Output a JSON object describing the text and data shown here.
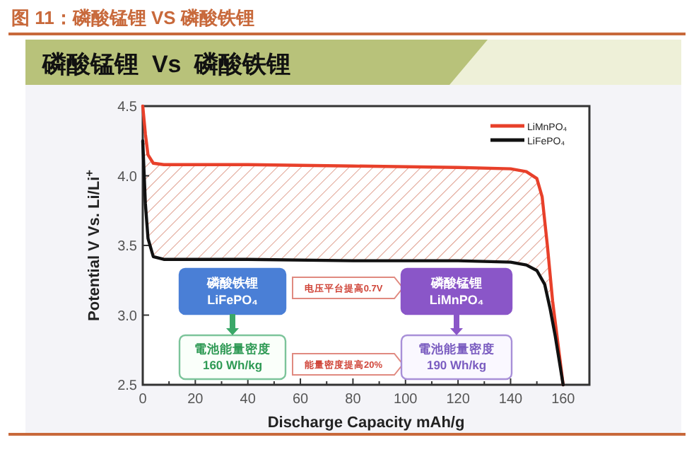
{
  "chart_data": {
    "type": "line",
    "title": "图 11：磷酸锰锂 VS 磷酸铁锂",
    "subtitle": "磷酸锰锂  Vs  磷酸铁锂",
    "xlabel": "Discharge Capacity mAh/g",
    "ylabel": "Potential V Vs. Li/Li$^{+}$",
    "xlim": [
      0,
      170
    ],
    "ylim": [
      2.5,
      4.5
    ],
    "xticks": [
      0,
      {
        "value": 10,
        "label": null
      },
      20,
      {
        "value": 30,
        "label": null
      },
      40,
      {
        "value": 50,
        "label": null
      },
      60,
      {
        "value": 70,
        "label": null
      },
      80,
      {
        "value": 90,
        "label": null
      },
      100,
      {
        "value": 110,
        "label": null
      },
      120,
      {
        "value": 130,
        "label": null
      },
      140,
      {
        "value": 150,
        "label": null
      },
      160
    ],
    "yticks": [
      2.5,
      {
        "value": 3,
        "label": "3.0"
      },
      3.5,
      {
        "value": 4,
        "label": "4.0"
      },
      4.5
    ],
    "grid": false,
    "legend": "top right",
    "series": [
      {
        "name": "LiMnPO₄",
        "color": "#e8402a",
        "x": [
          0,
          1,
          2,
          4,
          8,
          40,
          80,
          120,
          140,
          146,
          150,
          152,
          154,
          156,
          158,
          160
        ],
        "values": [
          4.5,
          4.3,
          4.15,
          4.09,
          4.08,
          4.08,
          4.07,
          4.06,
          4.05,
          4.03,
          3.98,
          3.85,
          3.5,
          3.1,
          2.8,
          2.5
        ],
        "upper": [
          4.5,
          4.3,
          4.15,
          4.09,
          4.08,
          4.08,
          4.07,
          4.06,
          4.05,
          4.03,
          3.98,
          3.85,
          3.5,
          3.1,
          2.8,
          2.5
        ],
        "lower": [
          4.25,
          3.8,
          3.55,
          3.42,
          3.4,
          3.4,
          3.39,
          3.39,
          3.38,
          3.36,
          3.32,
          3.26,
          3.12,
          2.95,
          2.72,
          2.5
        ]
      },
      {
        "name": "LiFePO₄",
        "color": "#111111",
        "x": [
          0,
          1,
          2,
          4,
          8,
          40,
          80,
          120,
          140,
          146,
          150,
          153,
          155,
          157,
          160
        ],
        "values": [
          4.25,
          3.8,
          3.55,
          3.42,
          3.4,
          3.4,
          3.39,
          3.39,
          3.38,
          3.36,
          3.32,
          3.22,
          3.05,
          2.85,
          2.5
        ]
      }
    ],
    "annotations": [
      "磷酸铁锂\nLiFePO₄",
      "電池能量密度\n160 Wh/kg",
      "电压平台提高0.7V",
      "能量密度提高20%",
      "磷酸锰锂\nLiMnPO₄",
      "電池能量密度\n190 Wh/kg"
    ]
  }
}
